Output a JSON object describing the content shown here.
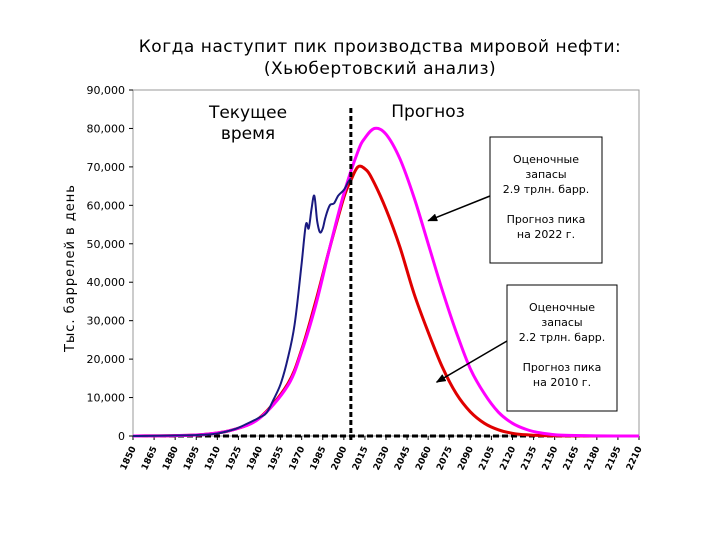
{
  "chart_data": {
    "type": "line",
    "title": "Когда наступит пик производства мировой нефти:",
    "subtitle": "(Хьюбертовский анализ)",
    "ylabel": "Тыс. баррелей в день",
    "xlabel": "",
    "ylim": [
      0,
      90000
    ],
    "xlim": [
      1850,
      2210
    ],
    "grid": false,
    "y_ticks": [
      "0",
      "10,000",
      "20,000",
      "30,000",
      "40,000",
      "50,000",
      "60,000",
      "70,000",
      "80,000",
      "90,000"
    ],
    "x_ticks": [
      "1850",
      "1865",
      "1880",
      "1895",
      "1910",
      "1925",
      "1940",
      "1955",
      "1970",
      "1985",
      "2000",
      "2015",
      "2030",
      "2045",
      "2060",
      "2075",
      "2090",
      "2105",
      "2120",
      "2135",
      "2150",
      "2165",
      "2180",
      "2195",
      "2210"
    ],
    "current_year": 2005,
    "region_labels": {
      "current_line1": "Текущее",
      "current_line2": "время",
      "forecast": "Прогноз"
    },
    "series": [
      {
        "color": "#1a1a80",
        "x": [
          1850,
          1900,
          1920,
          1930,
          1940,
          1945,
          1950,
          1955,
          1960,
          1965,
          1970,
          1973,
          1975,
          1977,
          1979,
          1981,
          1983,
          1985,
          1987,
          1990,
          1993,
          1996,
          2000,
          2003,
          2005
        ],
        "y": [
          0,
          300,
          1500,
          3000,
          4800,
          6000,
          9500,
          13500,
          20000,
          29000,
          45000,
          55000,
          54000,
          59000,
          62500,
          56000,
          53000,
          54000,
          57000,
          60000,
          60500,
          62500,
          64000,
          66000,
          67000
        ]
      },
      {
        "color": "#ff00ff",
        "peak_x": 2022,
        "x": [
          1850,
          1880,
          1900,
          1920,
          1940,
          1960,
          1970,
          1980,
          1990,
          2000,
          2010,
          2015,
          2022,
          2030,
          2040,
          2050,
          2060,
          2070,
          2080,
          2090,
          2100,
          2110,
          2120,
          2130,
          2140,
          2150,
          2160,
          2180,
          2210
        ],
        "y": [
          0,
          100,
          400,
          1500,
          4600,
          13000,
          22000,
          34000,
          49000,
          63000,
          74000,
          77500,
          80000,
          78500,
          72000,
          62000,
          50000,
          38000,
          27000,
          17500,
          11000,
          6200,
          3300,
          1700,
          800,
          350,
          150,
          30,
          0
        ]
      },
      {
        "color": "#e00000",
        "peak_x": 2010,
        "x": [
          1850,
          1880,
          1900,
          1920,
          1940,
          1960,
          1970,
          1980,
          1990,
          2000,
          2005,
          2010,
          2015,
          2020,
          2030,
          2040,
          2050,
          2060,
          2070,
          2080,
          2090,
          2100,
          2110,
          2120,
          2130,
          2140,
          2150,
          2160,
          2180,
          2210
        ],
        "y": [
          0,
          100,
          400,
          1500,
          4700,
          13500,
          22500,
          35000,
          49000,
          62000,
          66500,
          70000,
          69500,
          67000,
          59000,
          49000,
          37000,
          27000,
          18000,
          11000,
          6300,
          3300,
          1600,
          700,
          300,
          120,
          50,
          20,
          0,
          0
        ]
      }
    ],
    "annotations": [
      {
        "lines": [
          "Оценочные",
          "запасы",
          "2.9 трлн. барр.",
          "",
          "Прогноз пика",
          "на 2022 г."
        ],
        "arrow_to": [
          2060,
          56000
        ]
      },
      {
        "lines": [
          "Оценочные",
          "запасы",
          "2.2 трлн. барр.",
          "",
          "Прогноз пика",
          "на 2010 г."
        ],
        "arrow_to": [
          2066,
          14000
        ]
      }
    ]
  }
}
